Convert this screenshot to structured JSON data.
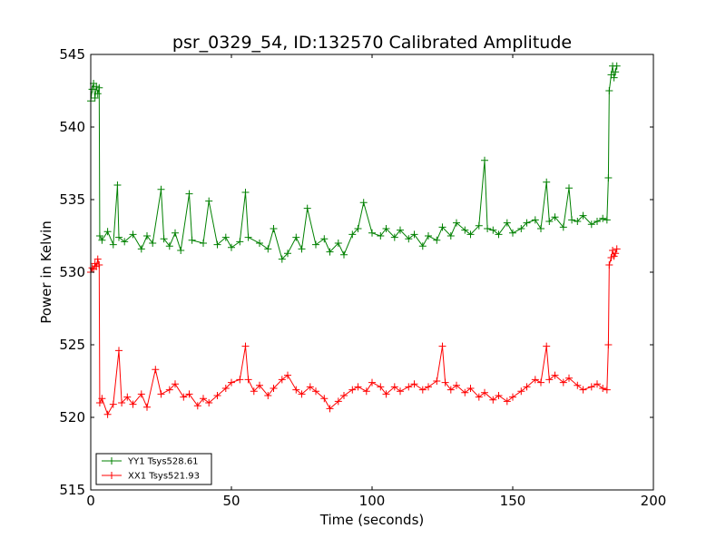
{
  "chart_data": {
    "type": "line",
    "title": "psr_0329_54, ID:132570 Calibrated Amplitude",
    "xlabel": "Time (seconds)",
    "ylabel": "Power in Kelvin",
    "xlim": [
      0,
      200
    ],
    "ylim": [
      515,
      545
    ],
    "xticks": [
      0,
      50,
      100,
      150,
      200
    ],
    "yticks": [
      515,
      520,
      525,
      530,
      535,
      540,
      545
    ],
    "grid": false,
    "legend_position": "lower-left",
    "marker": "+",
    "series": [
      {
        "name": "YY1 Tsys528.61",
        "color": "#008000",
        "points": [
          [
            0,
            541.8
          ],
          [
            0.5,
            542.6
          ],
          [
            1,
            543.0
          ],
          [
            1.5,
            542.0
          ],
          [
            2,
            542.8
          ],
          [
            2.5,
            542.3
          ],
          [
            3,
            542.7
          ],
          [
            3.2,
            532.5
          ],
          [
            4,
            532.2
          ],
          [
            6,
            532.8
          ],
          [
            8,
            531.9
          ],
          [
            9.5,
            536.0
          ],
          [
            10,
            532.4
          ],
          [
            12,
            532.1
          ],
          [
            15,
            532.6
          ],
          [
            18,
            531.6
          ],
          [
            20,
            532.5
          ],
          [
            22,
            532.0
          ],
          [
            25,
            535.7
          ],
          [
            26,
            532.3
          ],
          [
            28,
            531.8
          ],
          [
            30,
            532.7
          ],
          [
            32,
            531.5
          ],
          [
            35,
            535.4
          ],
          [
            36,
            532.2
          ],
          [
            40,
            532.0
          ],
          [
            42,
            534.9
          ],
          [
            45,
            531.9
          ],
          [
            48,
            532.4
          ],
          [
            50,
            531.7
          ],
          [
            53,
            532.1
          ],
          [
            55,
            535.5
          ],
          [
            56,
            532.4
          ],
          [
            60,
            532.0
          ],
          [
            63,
            531.6
          ],
          [
            65,
            533.0
          ],
          [
            68,
            530.9
          ],
          [
            70,
            531.3
          ],
          [
            73,
            532.4
          ],
          [
            75,
            531.6
          ],
          [
            77,
            534.4
          ],
          [
            80,
            531.9
          ],
          [
            83,
            532.3
          ],
          [
            85,
            531.4
          ],
          [
            88,
            532.0
          ],
          [
            90,
            531.2
          ],
          [
            93,
            532.6
          ],
          [
            95,
            533.0
          ],
          [
            97,
            534.8
          ],
          [
            100,
            532.7
          ],
          [
            103,
            532.5
          ],
          [
            105,
            533.0
          ],
          [
            108,
            532.4
          ],
          [
            110,
            532.9
          ],
          [
            113,
            532.3
          ],
          [
            115,
            532.6
          ],
          [
            118,
            531.8
          ],
          [
            120,
            532.5
          ],
          [
            123,
            532.2
          ],
          [
            125,
            533.1
          ],
          [
            128,
            532.5
          ],
          [
            130,
            533.4
          ],
          [
            133,
            532.9
          ],
          [
            135,
            532.6
          ],
          [
            138,
            533.2
          ],
          [
            140,
            537.7
          ],
          [
            141,
            533.0
          ],
          [
            143,
            532.9
          ],
          [
            145,
            532.6
          ],
          [
            148,
            533.4
          ],
          [
            150,
            532.7
          ],
          [
            153,
            533.0
          ],
          [
            155,
            533.4
          ],
          [
            158,
            533.6
          ],
          [
            160,
            533.0
          ],
          [
            162,
            536.2
          ],
          [
            163,
            533.5
          ],
          [
            165,
            533.8
          ],
          [
            168,
            533.1
          ],
          [
            170,
            535.8
          ],
          [
            171,
            533.6
          ],
          [
            173,
            533.5
          ],
          [
            175,
            533.9
          ],
          [
            178,
            533.3
          ],
          [
            180,
            533.5
          ],
          [
            182,
            533.7
          ],
          [
            183.5,
            533.6
          ],
          [
            184,
            536.5
          ],
          [
            184.3,
            542.5
          ],
          [
            185,
            543.6
          ],
          [
            185.5,
            544.2
          ],
          [
            186,
            543.4
          ],
          [
            186.5,
            543.8
          ],
          [
            187,
            544.2
          ]
        ]
      },
      {
        "name": "XX1 Tsys521.93",
        "color": "#ff0000",
        "points": [
          [
            0,
            530.0
          ],
          [
            0.5,
            530.3
          ],
          [
            1,
            530.2
          ],
          [
            1.5,
            530.6
          ],
          [
            2,
            530.4
          ],
          [
            2.5,
            530.9
          ],
          [
            3,
            530.5
          ],
          [
            3.2,
            521.0
          ],
          [
            4,
            521.3
          ],
          [
            6,
            520.2
          ],
          [
            8,
            520.9
          ],
          [
            10,
            524.6
          ],
          [
            11,
            521.0
          ],
          [
            13,
            521.4
          ],
          [
            15,
            520.9
          ],
          [
            18,
            521.6
          ],
          [
            20,
            520.7
          ],
          [
            23,
            523.3
          ],
          [
            25,
            521.6
          ],
          [
            28,
            521.9
          ],
          [
            30,
            522.3
          ],
          [
            33,
            521.4
          ],
          [
            35,
            521.6
          ],
          [
            38,
            520.8
          ],
          [
            40,
            521.3
          ],
          [
            42,
            521.0
          ],
          [
            45,
            521.5
          ],
          [
            48,
            522.0
          ],
          [
            50,
            522.4
          ],
          [
            53,
            522.6
          ],
          [
            55,
            524.9
          ],
          [
            56,
            522.6
          ],
          [
            58,
            521.8
          ],
          [
            60,
            522.2
          ],
          [
            63,
            521.5
          ],
          [
            65,
            522.0
          ],
          [
            68,
            522.6
          ],
          [
            70,
            522.9
          ],
          [
            73,
            521.9
          ],
          [
            75,
            521.6
          ],
          [
            78,
            522.1
          ],
          [
            80,
            521.8
          ],
          [
            83,
            521.3
          ],
          [
            85,
            520.6
          ],
          [
            88,
            521.1
          ],
          [
            90,
            521.5
          ],
          [
            93,
            521.9
          ],
          [
            95,
            522.1
          ],
          [
            98,
            521.8
          ],
          [
            100,
            522.4
          ],
          [
            103,
            522.1
          ],
          [
            105,
            521.6
          ],
          [
            108,
            522.1
          ],
          [
            110,
            521.8
          ],
          [
            113,
            522.1
          ],
          [
            115,
            522.3
          ],
          [
            118,
            521.9
          ],
          [
            120,
            522.1
          ],
          [
            123,
            522.5
          ],
          [
            125,
            524.9
          ],
          [
            126,
            522.4
          ],
          [
            128,
            521.9
          ],
          [
            130,
            522.2
          ],
          [
            133,
            521.7
          ],
          [
            135,
            522.0
          ],
          [
            138,
            521.4
          ],
          [
            140,
            521.7
          ],
          [
            143,
            521.2
          ],
          [
            145,
            521.5
          ],
          [
            148,
            521.1
          ],
          [
            150,
            521.4
          ],
          [
            153,
            521.8
          ],
          [
            155,
            522.1
          ],
          [
            158,
            522.6
          ],
          [
            160,
            522.4
          ],
          [
            162,
            524.9
          ],
          [
            163,
            522.6
          ],
          [
            165,
            522.9
          ],
          [
            168,
            522.4
          ],
          [
            170,
            522.7
          ],
          [
            173,
            522.2
          ],
          [
            175,
            521.9
          ],
          [
            178,
            522.1
          ],
          [
            180,
            522.3
          ],
          [
            182,
            522.0
          ],
          [
            183.5,
            521.9
          ],
          [
            184,
            525.0
          ],
          [
            184.3,
            530.5
          ],
          [
            185,
            531.0
          ],
          [
            185.5,
            531.5
          ],
          [
            186,
            531.1
          ],
          [
            186.5,
            531.3
          ],
          [
            187,
            531.6
          ]
        ]
      }
    ]
  }
}
